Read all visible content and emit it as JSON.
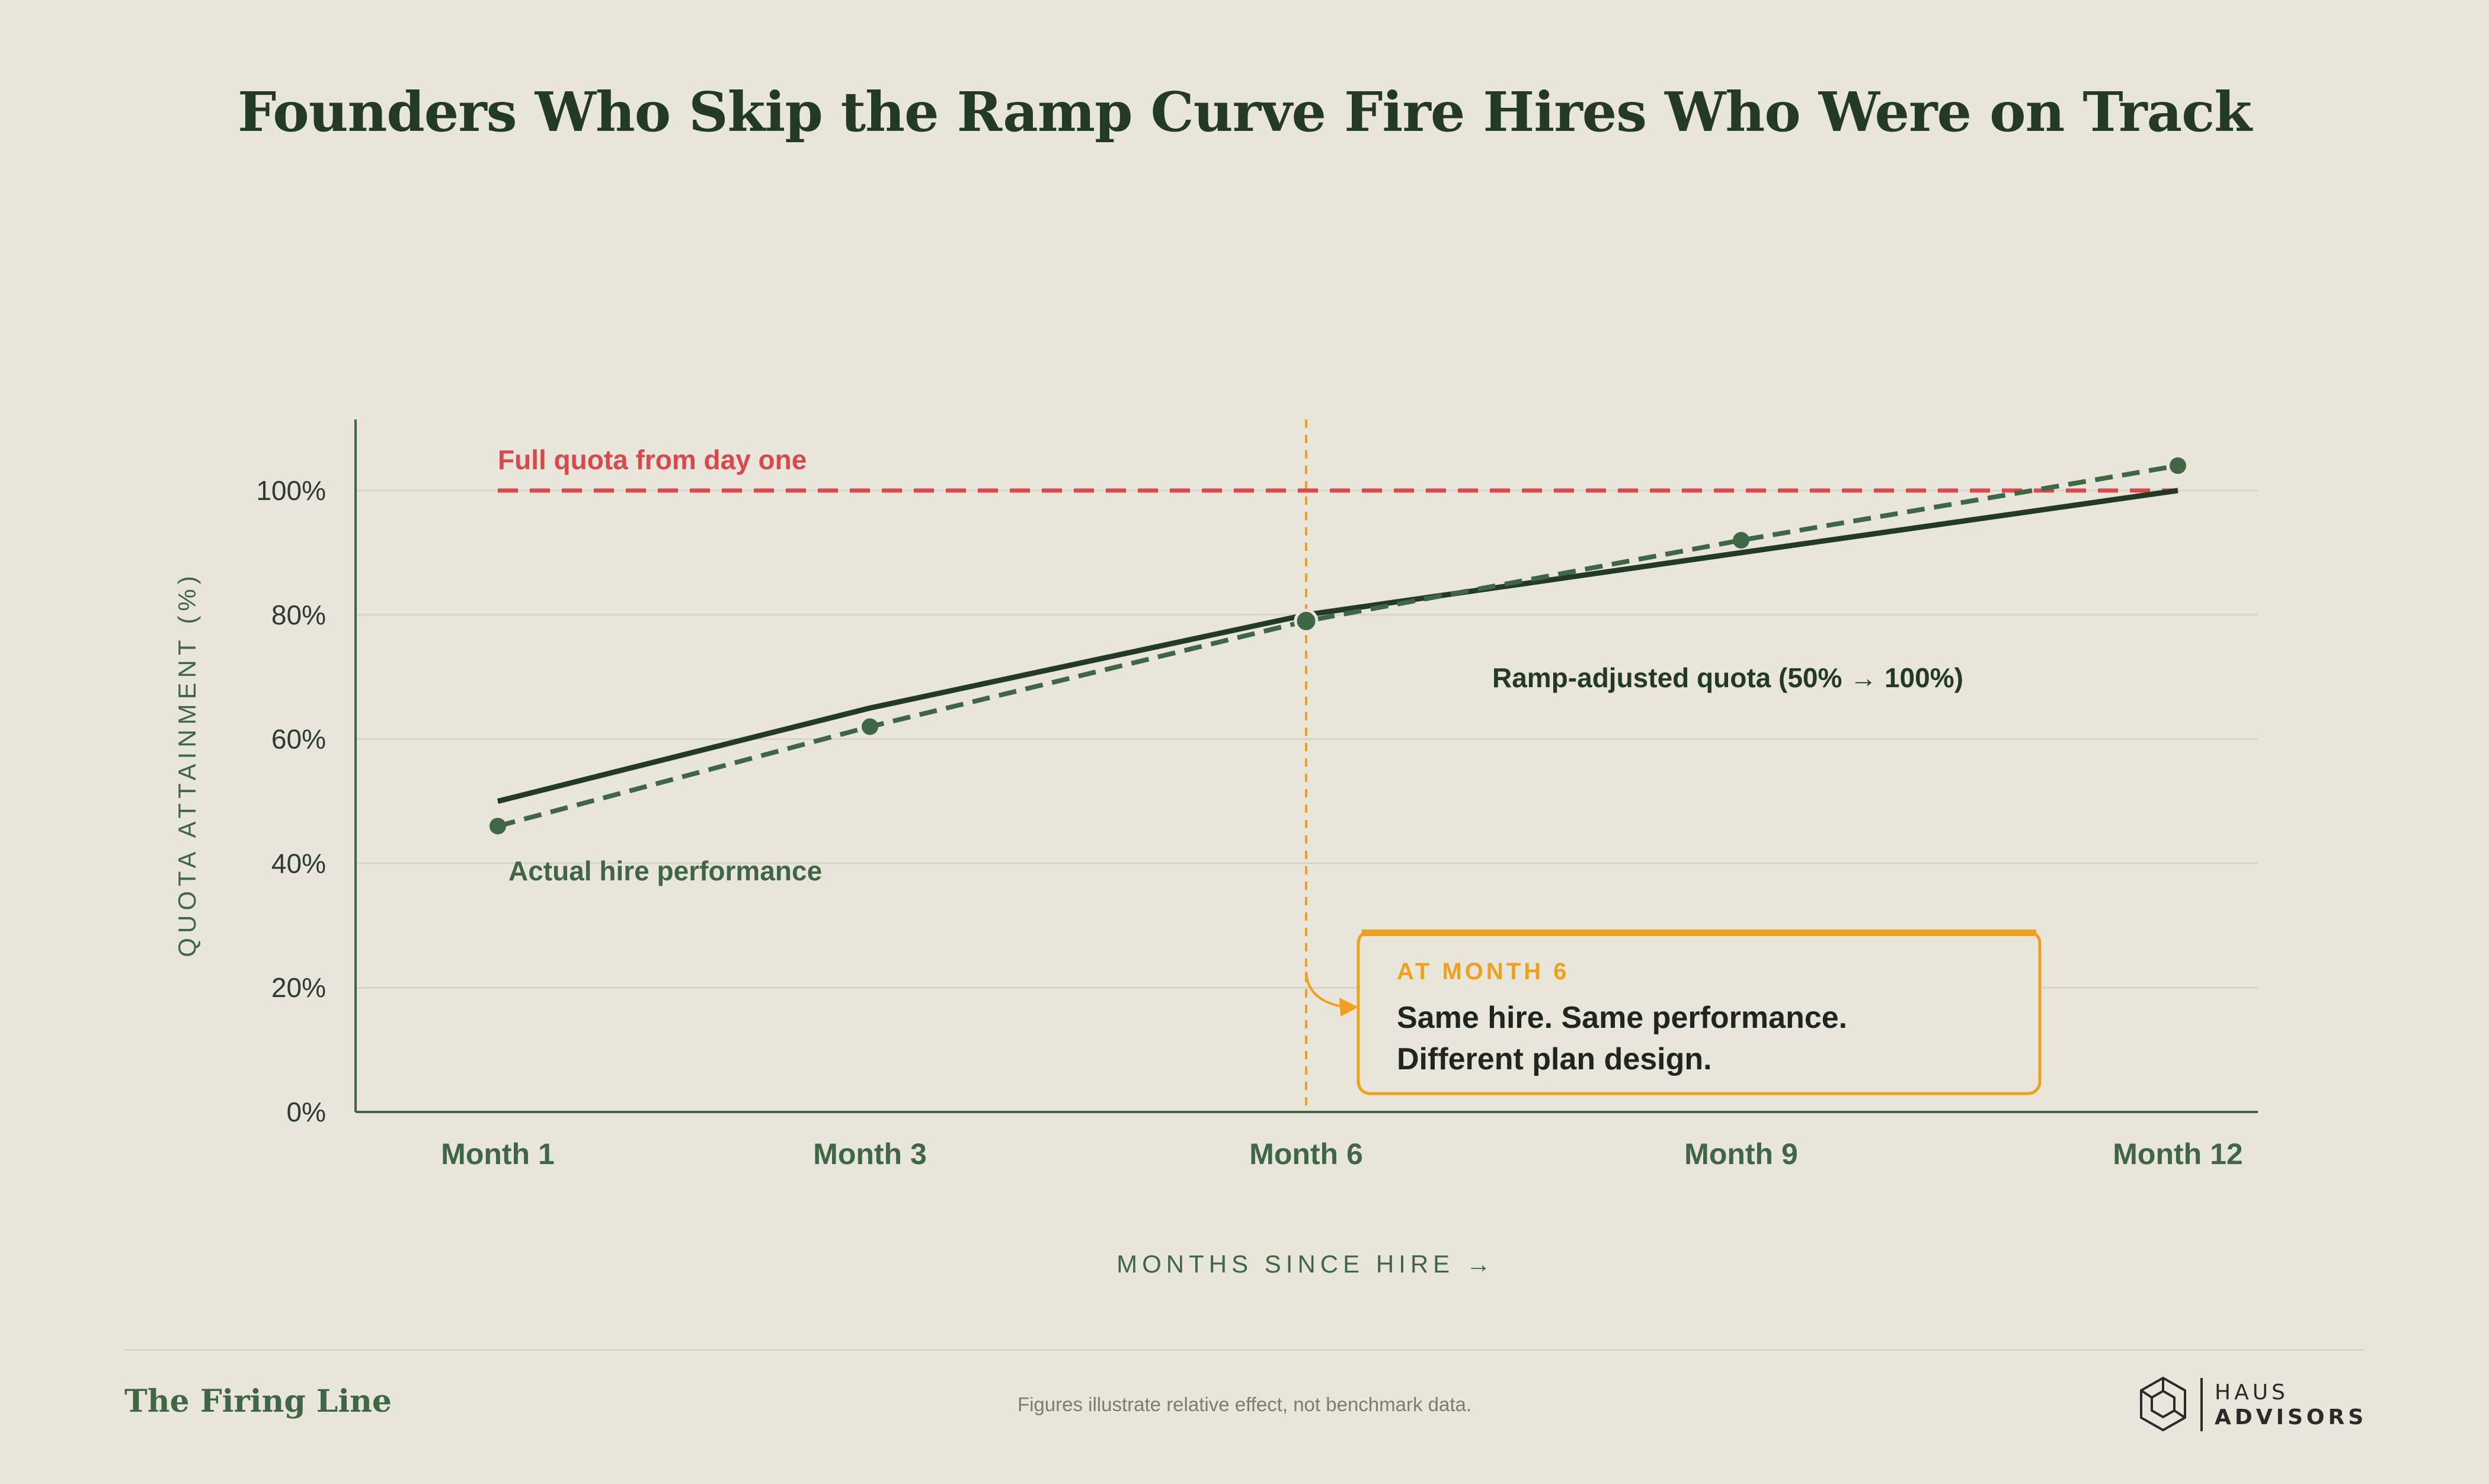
{
  "title": "Founders Who Skip the Ramp Curve Fire Hires Who Were on Track",
  "chart_data": {
    "type": "line",
    "x": [
      "Month 1",
      "Month 3",
      "Month 6",
      "Month 9",
      "Month 12"
    ],
    "xlabel": "MONTHS SINCE HIRE →",
    "ylabel": "QUOTA ATTAINMENT (%)",
    "ylim": [
      0,
      110
    ],
    "yticks": [
      0,
      20,
      40,
      60,
      80,
      100
    ],
    "ytick_labels": [
      "0%",
      "20%",
      "40%",
      "60%",
      "80%",
      "100%"
    ],
    "grid": true,
    "series": [
      {
        "name": "Full quota from day one",
        "style": "dashed",
        "color": "#d9484a",
        "values": [
          100,
          100,
          100,
          100,
          100
        ]
      },
      {
        "name": "Ramp-adjusted quota (50% → 100%)",
        "style": "solid",
        "color": "#233a26",
        "values": [
          50,
          65,
          80,
          90,
          100
        ]
      },
      {
        "name": "Actual hire performance",
        "style": "dashed",
        "color": "#3f6645",
        "markers": true,
        "values": [
          46,
          62,
          79,
          92,
          104
        ]
      }
    ],
    "reference_line": {
      "x": "Month 6",
      "color": "#f0a11c",
      "style": "dashed"
    },
    "callout": {
      "kicker": "AT MONTH 6",
      "line1": "Same hire. Same performance.",
      "line2": "Different plan design."
    }
  },
  "footer": {
    "brand": "The Firing Line",
    "note": "Figures illustrate relative effect, not benchmark data.",
    "logo_line1": "HAUS",
    "logo_line2": "ADVISORS",
    "logo_icon": "hexagon-cube-icon"
  }
}
